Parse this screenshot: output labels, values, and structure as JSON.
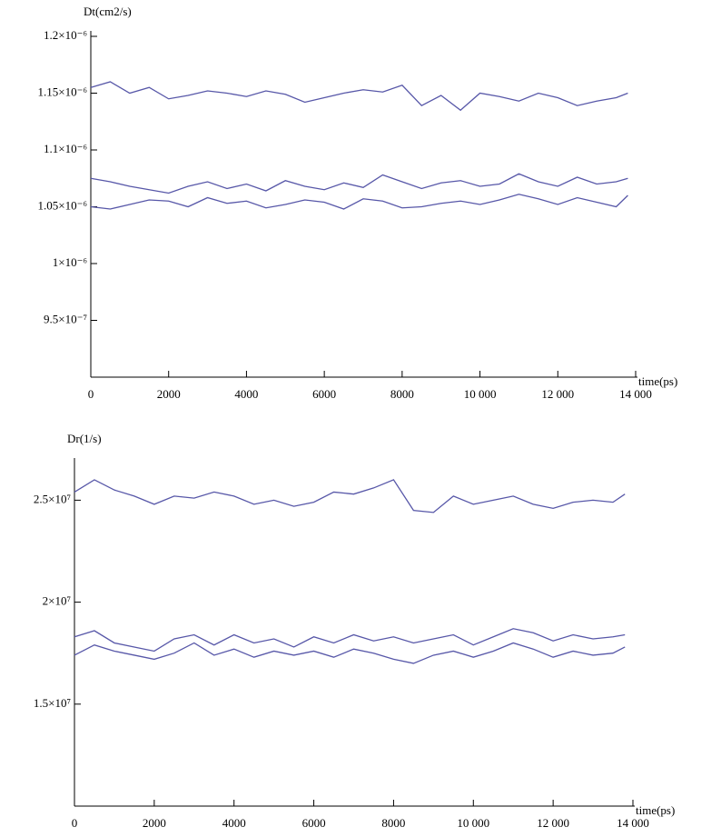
{
  "chart_data": [
    {
      "type": "line",
      "y_label": "Dt(cm2/s)",
      "x_label": "time(ps)",
      "x": [
        0,
        500,
        1000,
        1500,
        2000,
        2500,
        3000,
        3500,
        4000,
        4500,
        5000,
        5500,
        6000,
        6500,
        7000,
        7500,
        8000,
        8500,
        9000,
        9500,
        10000,
        10500,
        11000,
        11500,
        12000,
        12500,
        13000,
        13500,
        13800
      ],
      "xlim": [
        0,
        14000
      ],
      "xticks": [
        0,
        2000,
        4000,
        6000,
        8000,
        {
          "value": 10000,
          "label": "10 000"
        },
        {
          "value": 12000,
          "label": "12 000"
        },
        {
          "value": 14000,
          "label": "14 000"
        }
      ],
      "ylim": [
        9e-07,
        1.2e-06
      ],
      "yticks": [
        {
          "value": 9.5e-07,
          "label": "9.5×10⁻⁷"
        },
        {
          "value": 1e-06,
          "label": "1×10⁻⁶"
        },
        {
          "value": 1.05e-06,
          "label": "1.05×10⁻⁶"
        },
        {
          "value": 1.1e-06,
          "label": "1.1×10⁻⁶"
        },
        {
          "value": 1.15e-06,
          "label": "1.15×10⁻⁶"
        },
        {
          "value": 1.2e-06,
          "label": "1.2×10⁻⁶"
        }
      ],
      "series": [
        {
          "color": "#5757a8",
          "values": [
            1.155e-06,
            1.16e-06,
            1.15e-06,
            1.155e-06,
            1.145e-06,
            1.148e-06,
            1.152e-06,
            1.15e-06,
            1.147e-06,
            1.152e-06,
            1.149e-06,
            1.142e-06,
            1.146e-06,
            1.15e-06,
            1.153e-06,
            1.151e-06,
            1.157e-06,
            1.139e-06,
            1.148e-06,
            1.135e-06,
            1.15e-06,
            1.147e-06,
            1.143e-06,
            1.15e-06,
            1.146e-06,
            1.139e-06,
            1.143e-06,
            1.146e-06,
            1.15e-06
          ]
        },
        {
          "color": "#5757a8",
          "values": [
            1.075e-06,
            1.072e-06,
            1.068e-06,
            1.065e-06,
            1.062e-06,
            1.068e-06,
            1.072e-06,
            1.066e-06,
            1.07e-06,
            1.064e-06,
            1.073e-06,
            1.068e-06,
            1.065e-06,
            1.071e-06,
            1.067e-06,
            1.078e-06,
            1.072e-06,
            1.066e-06,
            1.071e-06,
            1.073e-06,
            1.068e-06,
            1.07e-06,
            1.079e-06,
            1.072e-06,
            1.068e-06,
            1.076e-06,
            1.07e-06,
            1.072e-06,
            1.075e-06
          ]
        },
        {
          "color": "#5757a8",
          "values": [
            1.05e-06,
            1.048e-06,
            1.052e-06,
            1.056e-06,
            1.055e-06,
            1.05e-06,
            1.058e-06,
            1.053e-06,
            1.055e-06,
            1.049e-06,
            1.052e-06,
            1.056e-06,
            1.054e-06,
            1.048e-06,
            1.057e-06,
            1.055e-06,
            1.049e-06,
            1.05e-06,
            1.053e-06,
            1.055e-06,
            1.052e-06,
            1.056e-06,
            1.061e-06,
            1.057e-06,
            1.052e-06,
            1.058e-06,
            1.054e-06,
            1.05e-06,
            1.06e-06
          ]
        }
      ]
    },
    {
      "type": "line",
      "y_label": "Dr(1/s)",
      "x_label": "time(ps)",
      "x": [
        0,
        500,
        1000,
        1500,
        2000,
        2500,
        3000,
        3500,
        4000,
        4500,
        5000,
        5500,
        6000,
        6500,
        7000,
        7500,
        8000,
        8500,
        9000,
        9500,
        10000,
        10500,
        11000,
        11500,
        12000,
        12500,
        13000,
        13500,
        13800
      ],
      "xlim": [
        0,
        14000
      ],
      "xticks": [
        0,
        2000,
        4000,
        6000,
        8000,
        {
          "value": 10000,
          "label": "10 000"
        },
        {
          "value": 12000,
          "label": "12 000"
        },
        {
          "value": 14000,
          "label": "14 000"
        }
      ],
      "ylim": [
        10000000.0,
        26800000.0
      ],
      "yticks": [
        {
          "value": 15000000.0,
          "label": "1.5×10⁷"
        },
        {
          "value": 20000000.0,
          "label": "2×10⁷"
        },
        {
          "value": 25000000.0,
          "label": "2.5×10⁷"
        }
      ],
      "series": [
        {
          "color": "#5757a8",
          "values": [
            25400000.0,
            26000000.0,
            25500000.0,
            25200000.0,
            24800000.0,
            25200000.0,
            25100000.0,
            25400000.0,
            25200000.0,
            24800000.0,
            25000000.0,
            24700000.0,
            24900000.0,
            25400000.0,
            25300000.0,
            25600000.0,
            26000000.0,
            24500000.0,
            24400000.0,
            25200000.0,
            24800000.0,
            25000000.0,
            25200000.0,
            24800000.0,
            24600000.0,
            24900000.0,
            25000000.0,
            24900000.0,
            25300000.0
          ]
        },
        {
          "color": "#5757a8",
          "values": [
            18300000.0,
            18600000.0,
            18000000.0,
            17800000.0,
            17600000.0,
            18200000.0,
            18400000.0,
            17900000.0,
            18400000.0,
            18000000.0,
            18200000.0,
            17800000.0,
            18300000.0,
            18000000.0,
            18400000.0,
            18100000.0,
            18300000.0,
            18000000.0,
            18200000.0,
            18400000.0,
            17900000.0,
            18300000.0,
            18700000.0,
            18500000.0,
            18100000.0,
            18400000.0,
            18200000.0,
            18300000.0,
            18400000.0
          ]
        },
        {
          "color": "#5757a8",
          "values": [
            17400000.0,
            17900000.0,
            17600000.0,
            17400000.0,
            17200000.0,
            17500000.0,
            18000000.0,
            17400000.0,
            17700000.0,
            17300000.0,
            17600000.0,
            17400000.0,
            17600000.0,
            17300000.0,
            17700000.0,
            17500000.0,
            17200000.0,
            17000000.0,
            17400000.0,
            17600000.0,
            17300000.0,
            17600000.0,
            18000000.0,
            17700000.0,
            17300000.0,
            17600000.0,
            17400000.0,
            17500000.0,
            17800000.0
          ]
        }
      ]
    }
  ]
}
